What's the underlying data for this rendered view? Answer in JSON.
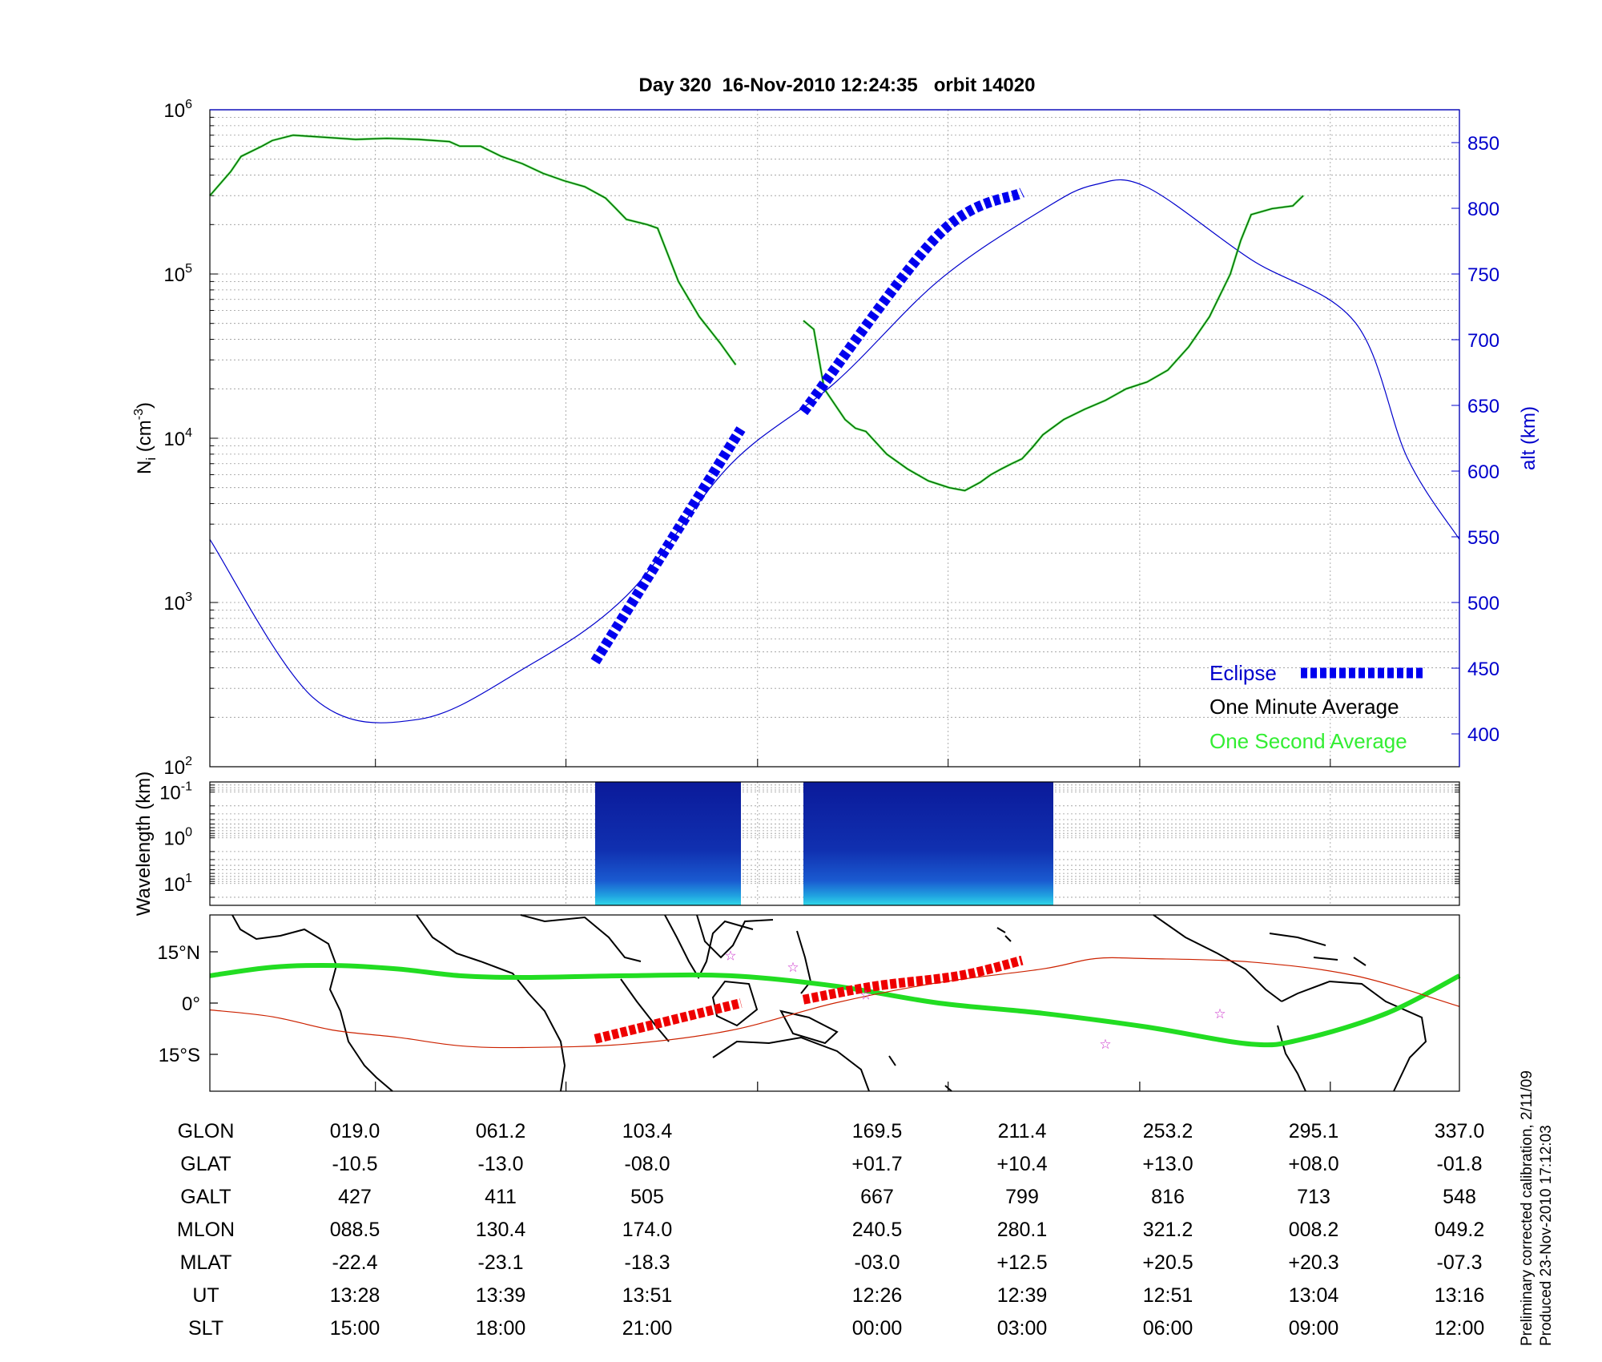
{
  "title": "Day 320  16-Nov-2010 12:24:35   orbit 14020",
  "side_note": [
    "Preliminary corrected calibration, 2/11/09",
    "Produced 23-Nov-2010 17:12:03"
  ],
  "colors": {
    "axis": "#000000",
    "alt_axis": "#0000cc",
    "eclipse": "#0000ee",
    "ni": "#006600",
    "one_second": "#33ee33",
    "track_north": "#22dd22",
    "track_south": "#cc2200",
    "eclipse_map": "#ee0000",
    "star": "#cc33cc",
    "spectrogram": "#0a1aa0"
  },
  "chart_data": [
    {
      "type": "line",
      "panel": "density",
      "ylabel": "N_i (cm^-3)",
      "y2label": "alt (km)",
      "y_scale": "log",
      "ylim": [
        100,
        1000000
      ],
      "y_ticks": [
        {
          "base": "10",
          "exp": "2"
        },
        {
          "base": "10",
          "exp": "3"
        },
        {
          "base": "10",
          "exp": "4"
        },
        {
          "base": "10",
          "exp": "5"
        },
        {
          "base": "10",
          "exp": "6"
        }
      ],
      "y2lim": [
        375,
        875
      ],
      "y2_ticks": [
        "400",
        "450",
        "500",
        "550",
        "600",
        "650",
        "700",
        "750",
        "800",
        "850"
      ],
      "grid": true,
      "legend": {
        "placement": "bottom-right",
        "entries": [
          "Eclipse",
          "One Minute Average",
          "One Second Average"
        ]
      },
      "series": [
        {
          "name": "One Minute Average",
          "axis": "left",
          "segments": [
            [
              [
                0,
                300000
              ],
              [
                2,
                420000
              ],
              [
                3,
                520000
              ],
              [
                5,
                600000
              ],
              [
                6,
                650000
              ],
              [
                8,
                700000
              ],
              [
                11,
                680000
              ],
              [
                14,
                660000
              ],
              [
                17,
                670000
              ],
              [
                20,
                660000
              ],
              [
                23,
                640000
              ],
              [
                24,
                600000
              ],
              [
                26,
                600000
              ],
              [
                28,
                520000
              ],
              [
                30,
                470000
              ],
              [
                32,
                410000
              ],
              [
                34,
                370000
              ],
              [
                36,
                340000
              ],
              [
                38,
                290000
              ],
              [
                39,
                250000
              ],
              [
                40,
                215000
              ],
              [
                42,
                200000
              ],
              [
                43,
                190000
              ],
              [
                45,
                90000
              ],
              [
                47,
                55000
              ],
              [
                49,
                38000
              ],
              [
                50.5,
                28000
              ]
            ],
            [
              [
                57,
                52000
              ],
              [
                58,
                46000
              ],
              [
                59,
                20000
              ],
              [
                61,
                13000
              ],
              [
                62,
                11500
              ],
              [
                63,
                11000
              ],
              [
                65,
                8000
              ],
              [
                67,
                6500
              ],
              [
                69,
                5500
              ],
              [
                71,
                5000
              ],
              [
                72.5,
                4800
              ],
              [
                74,
                5400
              ],
              [
                75,
                6000
              ],
              [
                76,
                6500
              ],
              [
                77,
                7000
              ],
              [
                78,
                7500
              ],
              [
                79,
                8800
              ],
              [
                80,
                10500
              ],
              [
                82,
                13000
              ],
              [
                84,
                15000
              ],
              [
                86,
                17000
              ],
              [
                88,
                20000
              ],
              [
                90,
                22000
              ],
              [
                92,
                26000
              ],
              [
                94,
                36000
              ],
              [
                96,
                55000
              ],
              [
                98,
                100000
              ],
              [
                99,
                160000
              ],
              [
                100,
                230000
              ],
              [
                102,
                250000
              ],
              [
                104,
                260000
              ],
              [
                105,
                300000
              ]
            ]
          ]
        },
        {
          "name": "alt",
          "axis": "right",
          "points": [
            [
              0,
              548
            ],
            [
              10,
              427
            ],
            [
              20,
              411
            ],
            [
              30,
              449
            ],
            [
              40,
              505
            ],
            [
              50,
              605
            ],
            [
              60,
              667
            ],
            [
              70,
              745
            ],
            [
              80,
              799
            ],
            [
              85,
              818
            ],
            [
              90,
              816
            ],
            [
              100,
              761
            ],
            [
              110,
              713
            ],
            [
              115,
              610
            ],
            [
              120,
              548
            ]
          ]
        },
        {
          "name": "Eclipse",
          "axis": "right",
          "segments": [
            [
              [
                37,
                455
              ],
              [
                51,
                632
              ]
            ],
            [
              [
                57,
                645
              ],
              [
                70,
                780
              ],
              [
                78,
                812
              ]
            ]
          ]
        }
      ]
    },
    {
      "type": "heatmap",
      "panel": "wavelength",
      "ylabel": "Wavelength (km)",
      "y_scale": "log",
      "ylim": [
        30,
        0.06
      ],
      "y_ticks": [
        {
          "base": "10",
          "exp": "-1"
        },
        {
          "base": "10",
          "exp": "0"
        },
        {
          "base": "10",
          "exp": "1"
        }
      ],
      "data_blocks": [
        [
          37,
          51
        ],
        [
          57,
          81
        ]
      ]
    },
    {
      "type": "map",
      "panel": "track",
      "y_ticks": [
        "15°N",
        "0°",
        "15°S"
      ],
      "series": [
        {
          "name": "track",
          "segments": [
            [
              [
                0,
                8
              ],
              [
                6,
                10.5
              ],
              [
                12,
                11
              ],
              [
                18,
                10
              ],
              [
                24,
                8
              ],
              [
                30,
                7.5
              ],
              [
                40,
                8
              ],
              [
                50,
                8
              ],
              [
                60,
                5
              ],
              [
                70,
                0
              ],
              [
                80,
                -3
              ],
              [
                90,
                -7
              ],
              [
                100,
                -12
              ],
              [
                105,
                -10.5
              ],
              [
                113,
                -3
              ],
              [
                120,
                8
              ]
            ],
            [
              [
                0,
                -2
              ],
              [
                6,
                -4
              ],
              [
                12,
                -8
              ],
              [
                18,
                -10
              ],
              [
                24,
                -12.5
              ],
              [
                30,
                -13
              ],
              [
                40,
                -12
              ],
              [
                50,
                -8
              ],
              [
                60,
                0
              ],
              [
                70,
                6
              ],
              [
                80,
                10
              ],
              [
                85,
                13
              ],
              [
                90,
                13
              ],
              [
                100,
                12
              ],
              [
                110,
                8
              ],
              [
                120,
                -1
              ]
            ]
          ]
        },
        {
          "name": "Eclipse",
          "segments": [
            [
              [
                37,
                -10.5
              ],
              [
                51,
                0
              ]
            ],
            [
              [
                57,
                1
              ],
              [
                64,
                5
              ],
              [
                72,
                8
              ],
              [
                78,
                12.5
              ]
            ]
          ]
        }
      ],
      "stars": [
        [
          50,
          14
        ],
        [
          56,
          10.5
        ],
        [
          63,
          2.5
        ],
        [
          86,
          -12
        ],
        [
          97,
          -3
        ]
      ]
    }
  ],
  "table": {
    "rows": [
      {
        "label": "GLON",
        "values": [
          "019.0",
          "061.2",
          "103.4",
          "169.5",
          "211.4",
          "253.2",
          "295.1",
          "337.0"
        ]
      },
      {
        "label": "GLAT",
        "values": [
          "-10.5",
          "-13.0",
          "-08.0",
          "+01.7",
          "+10.4",
          "+13.0",
          "+08.0",
          "-01.8"
        ]
      },
      {
        "label": "GALT",
        "values": [
          "427",
          "411",
          "505",
          "667",
          "799",
          "816",
          "713",
          "548"
        ]
      },
      {
        "label": "MLON",
        "values": [
          "088.5",
          "130.4",
          "174.0",
          "240.5",
          "280.1",
          "321.2",
          "008.2",
          "049.2"
        ]
      },
      {
        "label": "MLAT",
        "values": [
          "-22.4",
          "-23.1",
          "-18.3",
          "-03.0",
          "+12.5",
          "+20.5",
          "+20.3",
          "-07.3"
        ]
      },
      {
        "label": "UT",
        "values": [
          "13:28",
          "13:39",
          "13:51",
          "12:26",
          "12:39",
          "12:51",
          "13:04",
          "13:16"
        ]
      },
      {
        "label": "SLT",
        "values": [
          "15:00",
          "18:00",
          "21:00",
          "00:00",
          "03:00",
          "06:00",
          "09:00",
          "12:00"
        ]
      }
    ]
  }
}
